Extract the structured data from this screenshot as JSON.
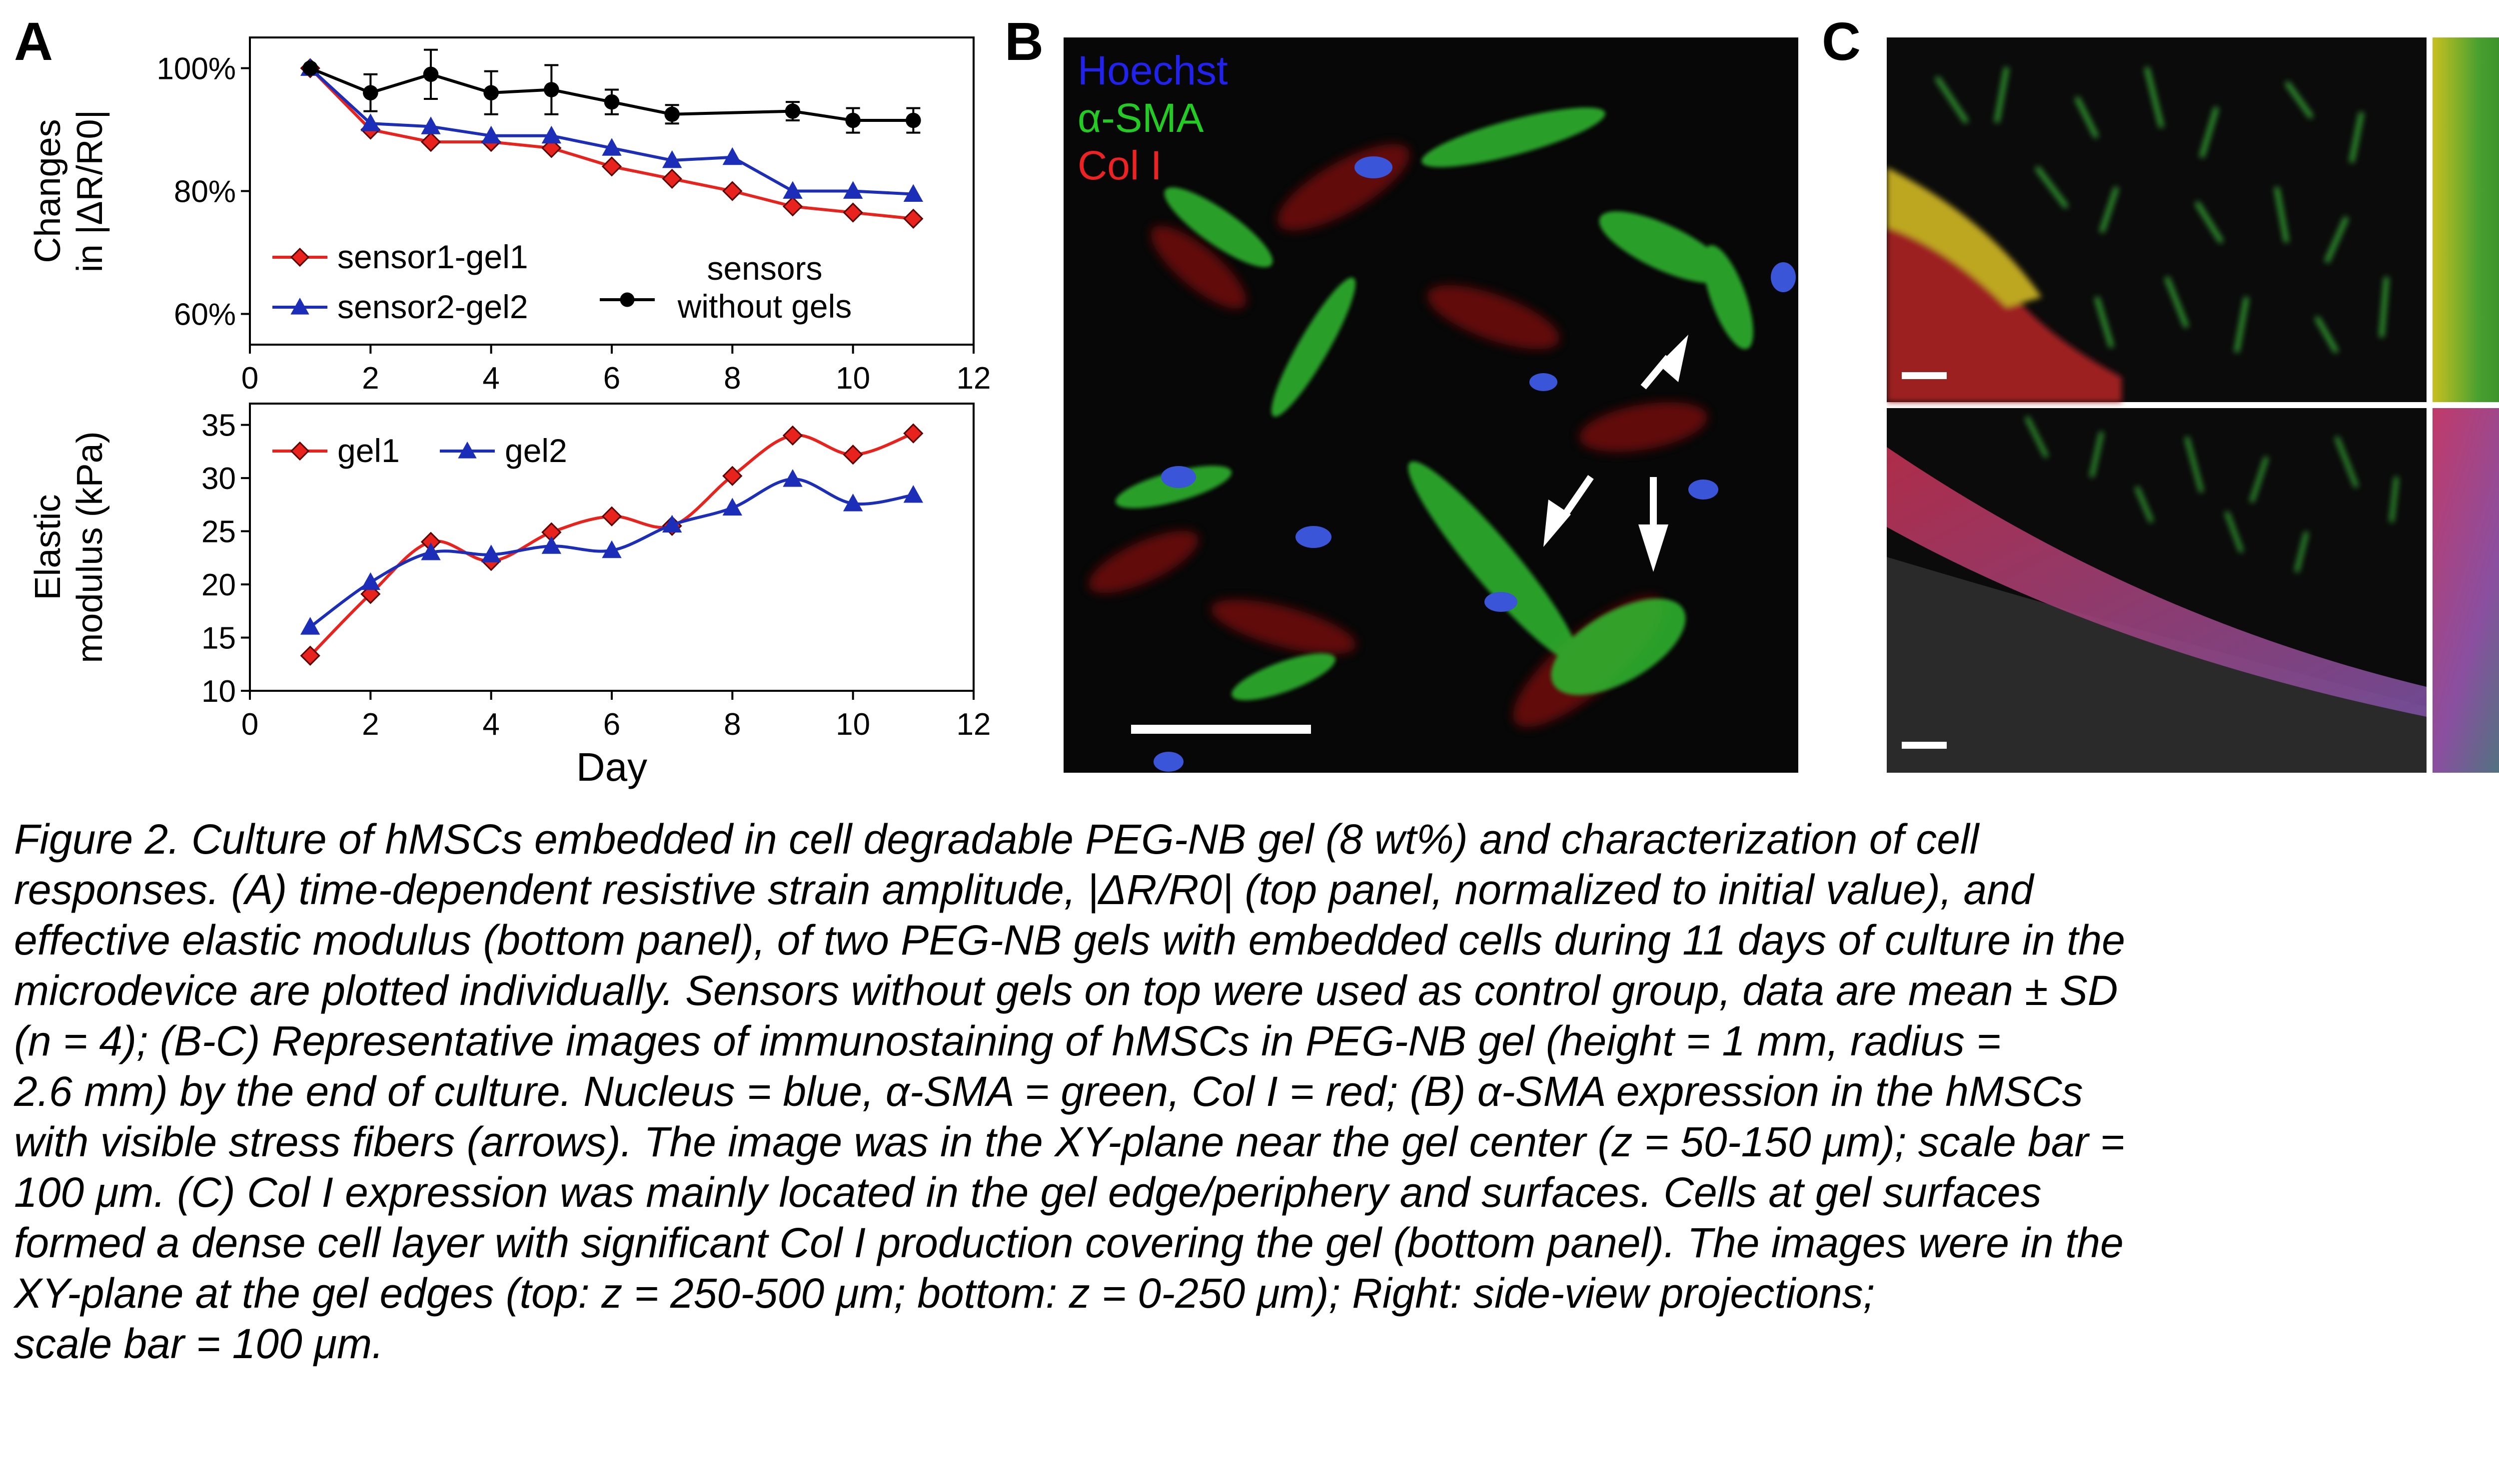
{
  "panel_labels": {
    "a": "A",
    "b": "B",
    "c": "C"
  },
  "chart_data": [
    {
      "type": "line",
      "title": "",
      "xlabel": "",
      "ylabel": "Changes in |ΔR/R0|",
      "ylabel_lines": [
        "Changes",
        "in |ΔR/R0|"
      ],
      "xlim": [
        0,
        12
      ],
      "ylim": [
        55,
        105
      ],
      "x_ticks": [
        0,
        2,
        4,
        6,
        8,
        10,
        12
      ],
      "y_ticks": [
        60,
        80,
        100
      ],
      "y_tick_labels": [
        "60%",
        "80%",
        "100%"
      ],
      "grid": false,
      "legend_position": "bottom",
      "series": [
        {
          "name": "sensor1-gel1",
          "color": "#e8231d",
          "marker": "diamond",
          "marker_fill": "#e8231d",
          "x": [
            1,
            2,
            3,
            4,
            5,
            6,
            7,
            8,
            9,
            10,
            11
          ],
          "y": [
            100,
            90,
            88,
            88,
            87,
            84,
            82,
            80,
            77.5,
            76.5,
            75.5
          ]
        },
        {
          "name": "sensor2-gel2",
          "color": "#1c2eb8",
          "marker": "triangle",
          "marker_fill": "#1c2eb8",
          "x": [
            1,
            2,
            3,
            4,
            5,
            6,
            7,
            8,
            9,
            10,
            11
          ],
          "y": [
            100,
            91,
            90.5,
            89,
            89,
            87,
            85,
            85.5,
            80,
            80,
            79.5
          ]
        },
        {
          "name": "sensors without gels",
          "name_lines": [
            "sensors",
            "without gels"
          ],
          "color": "#000000",
          "marker": "circle",
          "marker_fill": "#000000",
          "x": [
            1,
            2,
            3,
            4,
            5,
            6,
            7,
            9,
            10,
            11
          ],
          "y": [
            100,
            96,
            99,
            96,
            96.5,
            94.5,
            92.5,
            93,
            91.5,
            91.5
          ],
          "error": [
            0,
            3,
            4,
            3.5,
            4,
            2,
            1.5,
            1.5,
            2,
            2
          ]
        }
      ]
    },
    {
      "type": "line",
      "title": "",
      "xlabel": "Day",
      "ylabel": "Elastic modulus (kPa)",
      "ylabel_lines": [
        "Elastic",
        "modulus (kPa)"
      ],
      "xlim": [
        0,
        12
      ],
      "ylim": [
        10,
        37
      ],
      "x_ticks": [
        0,
        2,
        4,
        6,
        8,
        10,
        12
      ],
      "y_ticks": [
        10,
        15,
        20,
        25,
        30,
        35
      ],
      "grid": false,
      "legend_position": "top",
      "series": [
        {
          "name": "gel1",
          "color": "#e8231d",
          "marker": "diamond",
          "marker_fill": "#e8231d",
          "x": [
            1,
            2,
            3,
            4,
            5,
            6,
            7,
            8,
            9,
            10,
            11
          ],
          "y": [
            13.3,
            19.1,
            24,
            22.2,
            24.9,
            26.4,
            25.5,
            30.2,
            34,
            32.2,
            34.2
          ]
        },
        {
          "name": "gel2",
          "color": "#1c2eb8",
          "marker": "triangle",
          "marker_fill": "#1c2eb8",
          "x": [
            1,
            2,
            3,
            4,
            5,
            6,
            7,
            8,
            9,
            10,
            11
          ],
          "y": [
            16,
            20.2,
            23,
            22.8,
            23.6,
            23.2,
            25.6,
            27.2,
            29.9,
            27.6,
            28.4
          ]
        }
      ]
    }
  ],
  "panel_b": {
    "channels": [
      {
        "label": "Hoechst",
        "color": "#2222ee"
      },
      {
        "label": "α-SMA",
        "color": "#22cc22"
      },
      {
        "label": "Col I",
        "color": "#ee2222"
      }
    ]
  },
  "caption": {
    "lines": [
      "Figure 2. Culture of hMSCs embedded in cell degradable PEG-NB gel (8 wt%) and characterization of cell",
      "responses. (A) time-dependent resistive strain amplitude, |ΔR/R0| (top panel, normalized to initial value), and",
      "effective elastic modulus (bottom panel), of two PEG-NB gels with embedded cells during 11 days of culture in the",
      "microdevice are plotted individually. Sensors without gels on top were used as control group, data are mean ± SD",
      "(n = 4); (B-C) Representative images of immunostaining of hMSCs in PEG-NB gel (height = 1 mm, radius =",
      "2.6 mm) by the end of culture. Nucleus = blue, α-SMA = green, Col I = red; (B) α-SMA expression in the hMSCs",
      "with visible stress fibers (arrows). The image was in the XY-plane near the gel center (z = 50-150 μm); scale bar =",
      "100 μm. (C) Col I expression was mainly located in the gel edge/periphery and surfaces. Cells at gel surfaces",
      "formed a dense cell layer with significant Col I production covering the gel (bottom panel). The images were in the",
      "XY-plane at the gel edges (top: z = 250-500 μm; bottom: z = 0-250 μm); Right: side-view projections;",
      "scale bar = 100 μm."
    ]
  }
}
